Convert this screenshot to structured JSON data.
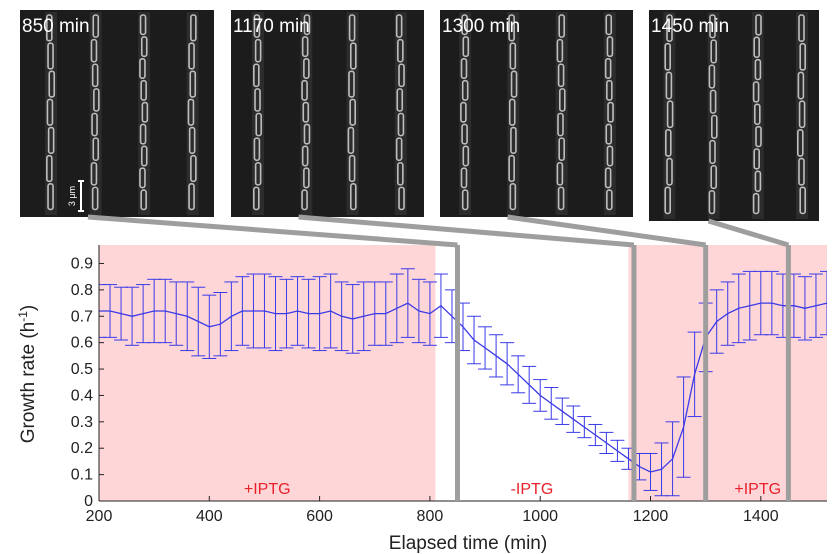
{
  "colors": {
    "induced_bg": "#ffd6d8",
    "series": "#3a3ae8",
    "errorbar": "#3a3ae8",
    "connector": "#9e9e9e",
    "region_text": "#e8202a",
    "micrograph_bg": "#1c1c1c",
    "cell": "#d8d8d8"
  },
  "panels": [
    {
      "label": "850 min",
      "time": 850
    },
    {
      "label": "1170 min",
      "time": 1170
    },
    {
      "label": "1300 min",
      "time": 1300
    },
    {
      "label": "1450 min",
      "time": 1450
    }
  ],
  "scale_bar": {
    "label": "3 μm"
  },
  "chart_data": {
    "type": "line",
    "title": "",
    "xlabel": "Elapsed time (min)",
    "ylabel_base": "Growth rate (h",
    "ylabel_sup": "-1",
    "ylabel_end": ")",
    "xlim": [
      200,
      1520
    ],
    "ylim": [
      0,
      0.97
    ],
    "xticks": [
      200,
      400,
      600,
      800,
      1000,
      1200,
      1400
    ],
    "yticks": [
      0,
      0.1,
      0.2,
      0.3,
      0.4,
      0.5,
      0.6,
      0.7,
      0.8,
      0.9
    ],
    "ytick_labels": [
      "0",
      "0.1",
      "0.2",
      "0.3",
      "0.4",
      "0.5",
      "0.6",
      "0.7",
      "0.8",
      "0.9"
    ],
    "grid": false,
    "regions": [
      {
        "label": "+IPTG",
        "start": 200,
        "end": 810,
        "shaded": true
      },
      {
        "label": "-IPTG",
        "start": 810,
        "end": 1160,
        "shaded": false
      },
      {
        "label": "+IPTG",
        "start": 1160,
        "end": 1520,
        "shaded": true
      }
    ],
    "series": [
      {
        "x": [
          200,
          220,
          240,
          260,
          280,
          300,
          320,
          340,
          360,
          380,
          400,
          420,
          440,
          460,
          480,
          500,
          520,
          540,
          560,
          580,
          600,
          620,
          640,
          660,
          680,
          700,
          720,
          740,
          760,
          780,
          800,
          820,
          840,
          860,
          880,
          900,
          920,
          940,
          960,
          980,
          1000,
          1020,
          1040,
          1060,
          1080,
          1100,
          1120,
          1140,
          1160,
          1180,
          1200,
          1220,
          1240,
          1260,
          1280,
          1300,
          1320,
          1340,
          1360,
          1380,
          1400,
          1420,
          1440,
          1460,
          1480,
          1500,
          1520
        ],
        "y": [
          0.72,
          0.72,
          0.71,
          0.7,
          0.71,
          0.72,
          0.72,
          0.71,
          0.7,
          0.68,
          0.66,
          0.67,
          0.7,
          0.72,
          0.72,
          0.72,
          0.71,
          0.71,
          0.72,
          0.71,
          0.71,
          0.72,
          0.7,
          0.69,
          0.7,
          0.71,
          0.71,
          0.73,
          0.75,
          0.72,
          0.71,
          0.74,
          0.7,
          0.66,
          0.61,
          0.58,
          0.55,
          0.52,
          0.48,
          0.44,
          0.4,
          0.37,
          0.34,
          0.31,
          0.28,
          0.25,
          0.22,
          0.19,
          0.16,
          0.13,
          0.11,
          0.12,
          0.16,
          0.28,
          0.48,
          0.62,
          0.68,
          0.71,
          0.73,
          0.74,
          0.75,
          0.75,
          0.74,
          0.74,
          0.73,
          0.74,
          0.75
        ],
        "err": [
          0.1,
          0.1,
          0.1,
          0.11,
          0.11,
          0.12,
          0.12,
          0.12,
          0.13,
          0.13,
          0.12,
          0.12,
          0.13,
          0.13,
          0.14,
          0.14,
          0.14,
          0.13,
          0.13,
          0.13,
          0.14,
          0.14,
          0.13,
          0.13,
          0.13,
          0.12,
          0.12,
          0.13,
          0.13,
          0.12,
          0.12,
          0.12,
          0.1,
          0.09,
          0.09,
          0.08,
          0.08,
          0.08,
          0.07,
          0.07,
          0.06,
          0.06,
          0.05,
          0.05,
          0.04,
          0.04,
          0.04,
          0.04,
          0.04,
          0.05,
          0.07,
          0.1,
          0.14,
          0.19,
          0.16,
          0.13,
          0.12,
          0.12,
          0.13,
          0.13,
          0.12,
          0.12,
          0.12,
          0.12,
          0.12,
          0.12,
          0.12
        ]
      }
    ],
    "markers": [
      {
        "time": 850,
        "panel_index": 0
      },
      {
        "time": 1170,
        "panel_index": 1
      },
      {
        "time": 1300,
        "panel_index": 2
      },
      {
        "time": 1450,
        "panel_index": 3
      }
    ]
  }
}
